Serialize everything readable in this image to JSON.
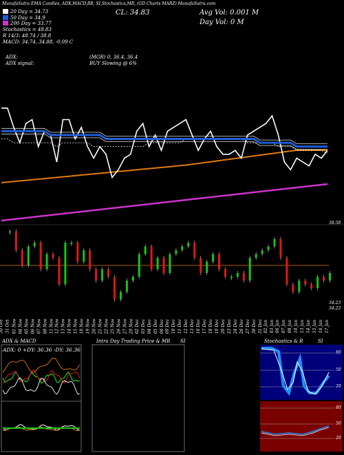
{
  "header": {
    "top_line": "MunafaSutra EMA Candles, ADX,MACD,BB, SI,Stochastics,MR, (GD Charts MARZ) MunafaSutra.com",
    "close_label": "CL: 34.83",
    "avg_vol": "Avg Vol: 0.001 M",
    "day_vol": "Day Vol: 0   M"
  },
  "legend": [
    {
      "label": "20  Day = 34.73",
      "color": "#ffffff"
    },
    {
      "label": "50  Day = 34.9",
      "color": "#1e5fd8"
    },
    {
      "label": "200  Day = 33.77",
      "color": "#cc33cc"
    },
    {
      "label": "Stochastics = 48.83",
      "color": null
    },
    {
      "label": "R        14/3: 48.74  /  38.8",
      "color": null
    },
    {
      "label": "MACD: 34.74,  34.88, -0.09  C",
      "color": null
    }
  ],
  "adx_info": {
    "line1_left": "ADX:",
    "line1_right": "(MGR) 0, 36.4, 36.4",
    "line2_left": "ADX  signal:",
    "line2_right": "BUY Slowing @ 6%"
  },
  "price_tick": "38.58",
  "mid_ticks": [
    "34.23",
    "34.23"
  ],
  "dates": [
    "30 Oct",
    "31 Oct",
    "01 Nov",
    "04 Nov",
    "05 Nov",
    "06 Nov",
    "07 Nov",
    "08 Nov",
    "11 Nov",
    "12 Nov",
    "13 Nov",
    "14 Nov",
    "15 Nov",
    "18 Nov",
    "19 Nov",
    "20 Nov",
    "21 Nov",
    "22 Nov",
    "25 Nov",
    "26 Nov",
    "27 Nov",
    "29 Nov",
    "02 Dec",
    "03 Dec",
    "04 Dec",
    "05 Dec",
    "06 Dec",
    "09 Dec",
    "10 Dec",
    "11 Dec",
    "12 Dec",
    "13 Dec",
    "16 Dec",
    "17 Dec",
    "18 Dec",
    "19 Dec",
    "20 Dec",
    "23 Dec",
    "24 Dec",
    "26 Dec",
    "27 Dec",
    "30 Dec",
    "31 Dec",
    "02 Jan",
    "03 Jan",
    "06 Jan",
    "07 Jan",
    "08 Jan",
    "10 Jan",
    "13 Jan",
    "14 Jan",
    "15 Jan",
    "16 Jan",
    "17 Jan"
  ],
  "panels": {
    "adx_title": "ADX  & MACD",
    "adx_readout": "ADX: 0  +DY: 36.36  -DY: 36.36",
    "intraday_title": "Intra  Day Trading Price  & MR",
    "intraday_si": "SI",
    "stoch_title": "Stochastics & R",
    "stoch_si": "SI",
    "stoch_ticks": [
      "80",
      "50",
      "20"
    ],
    "r_ticks": [
      "80",
      "50",
      "20"
    ]
  },
  "colors": {
    "ema20": "#ffffff",
    "ema50": "#1e5fd8",
    "ema200": "#cc33cc",
    "orange_ma": "#e07a10",
    "bull": "#19c41a",
    "bear": "#e01818",
    "stoch_bg": "#00007a",
    "r_bg": "#7a0000"
  },
  "chart_data": {
    "type": "line",
    "title": "MARZ",
    "x": [
      "30 Oct",
      "31 Oct",
      "01 Nov",
      "04 Nov",
      "05 Nov",
      "06 Nov",
      "07 Nov",
      "08 Nov",
      "11 Nov",
      "12 Nov",
      "13 Nov",
      "14 Nov",
      "15 Nov",
      "18 Nov",
      "19 Nov",
      "20 Nov",
      "21 Nov",
      "22 Nov",
      "25 Nov",
      "26 Nov",
      "27 Nov",
      "29 Nov",
      "02 Dec",
      "03 Dec",
      "04 Dec",
      "05 Dec",
      "06 Dec",
      "09 Dec",
      "10 Dec",
      "11 Dec",
      "12 Dec",
      "13 Dec",
      "16 Dec",
      "17 Dec",
      "18 Dec",
      "19 Dec",
      "20 Dec",
      "23 Dec",
      "24 Dec",
      "26 Dec",
      "27 Dec",
      "30 Dec",
      "31 Dec",
      "02 Jan",
      "03 Jan",
      "06 Jan",
      "07 Jan",
      "08 Jan",
      "10 Jan",
      "13 Jan",
      "14 Jan",
      "15 Jan",
      "16 Jan",
      "17 Jan"
    ],
    "series": [
      {
        "name": "Close",
        "values": [
          35.9,
          35.9,
          35.4,
          35.0,
          35.5,
          35.6,
          34.9,
          35.3,
          35.2,
          34.5,
          35.6,
          35.6,
          35.1,
          35.4,
          34.9,
          34.6,
          34.9,
          34.7,
          34.1,
          34.3,
          34.6,
          34.7,
          35.3,
          35.5,
          34.9,
          35.2,
          34.8,
          35.3,
          35.4,
          35.5,
          35.6,
          35.2,
          34.8,
          35.1,
          35.3,
          34.9,
          34.7,
          34.7,
          34.8,
          34.6,
          35.2,
          35.3,
          35.4,
          35.5,
          35.7,
          35.2,
          34.5,
          34.3,
          34.6,
          34.5,
          34.4,
          34.7,
          34.6,
          34.8
        ]
      },
      {
        "name": "20  Day",
        "values": [
          35.1,
          35.1,
          35.0,
          35.0,
          35.0,
          35.0,
          35.0,
          35.0,
          35.0,
          34.9,
          35.0,
          35.0,
          35.0,
          35.0,
          35.0,
          34.9,
          34.9,
          34.9,
          34.9,
          34.9,
          34.9,
          34.9,
          34.9,
          34.9,
          35.0,
          35.0,
          35.0,
          35.0,
          35.0,
          35.0,
          35.1,
          35.1,
          35.1,
          35.1,
          35.1,
          35.1,
          35.1,
          35.1,
          35.1,
          35.1,
          35.0,
          35.0,
          35.0,
          35.0,
          35.0,
          34.9,
          34.9,
          34.9,
          34.8,
          34.8,
          34.8,
          34.8,
          34.8,
          34.73
        ]
      },
      {
        "name": "50  Day",
        "values": [
          35.3,
          35.3,
          35.3,
          35.3,
          35.3,
          35.3,
          35.3,
          35.3,
          35.2,
          35.2,
          35.2,
          35.2,
          35.2,
          35.2,
          35.2,
          35.2,
          35.2,
          35.1,
          35.1,
          35.1,
          35.1,
          35.1,
          35.1,
          35.1,
          35.1,
          35.1,
          35.1,
          35.1,
          35.1,
          35.1,
          35.1,
          35.1,
          35.1,
          35.1,
          35.1,
          35.1,
          35.1,
          35.1,
          35.1,
          35.1,
          35.1,
          35.1,
          35.0,
          35.0,
          35.0,
          35.0,
          35.0,
          35.0,
          34.9,
          34.9,
          34.9,
          34.9,
          34.9,
          34.9
        ]
      },
      {
        "name": "200  Day",
        "values": [
          33.3,
          33.31,
          33.32,
          33.33,
          33.34,
          33.35,
          33.36,
          33.37,
          33.38,
          33.39,
          33.4,
          33.41,
          33.42,
          33.43,
          33.44,
          33.45,
          33.46,
          33.47,
          33.48,
          33.49,
          33.5,
          33.51,
          33.52,
          33.53,
          33.54,
          33.55,
          33.56,
          33.57,
          33.58,
          33.59,
          33.6,
          33.61,
          33.62,
          33.63,
          33.64,
          33.65,
          33.66,
          33.67,
          33.68,
          33.69,
          33.7,
          33.71,
          33.72,
          33.73,
          33.74,
          33.74,
          33.75,
          33.75,
          33.76,
          33.76,
          33.76,
          33.77,
          33.77,
          33.77
        ]
      }
    ],
    "ylabel": "",
    "ylim": [
      32.8,
      36.2
    ]
  }
}
